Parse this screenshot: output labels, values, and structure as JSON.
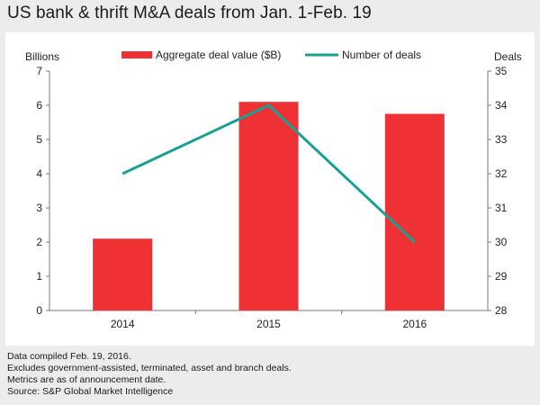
{
  "chart_data": {
    "type": "bar+line",
    "title": "US bank & thrift M&A deals from Jan. 1-Feb. 19",
    "categories": [
      "2014",
      "2015",
      "2016"
    ],
    "series": [
      {
        "name": "Aggregate deal value ($B)",
        "type": "bar",
        "axis": "left",
        "values": [
          2.1,
          6.1,
          5.75
        ],
        "color": "#ee3134"
      },
      {
        "name": "Number of deals",
        "type": "line",
        "axis": "right",
        "values": [
          32,
          34,
          30
        ],
        "color": "#1aa093"
      }
    ],
    "left_axis": {
      "label": "Billions",
      "ylim": [
        0,
        7
      ],
      "ticks": [
        "0",
        "1",
        "2",
        "3",
        "4",
        "5",
        "6",
        "7"
      ]
    },
    "right_axis": {
      "label": "Deals",
      "ylim": [
        28,
        35
      ],
      "ticks": [
        "28",
        "29",
        "30",
        "31",
        "32",
        "33",
        "34",
        "35"
      ]
    },
    "legend_position": "top-center",
    "grid": false
  },
  "notes": [
    "Data compiled Feb. 19, 2016.",
    "Excludes government-assisted, terminated, asset and branch deals.",
    "Metrics are as of announcement date.",
    "Source: S&P Global Market Intelligence"
  ]
}
